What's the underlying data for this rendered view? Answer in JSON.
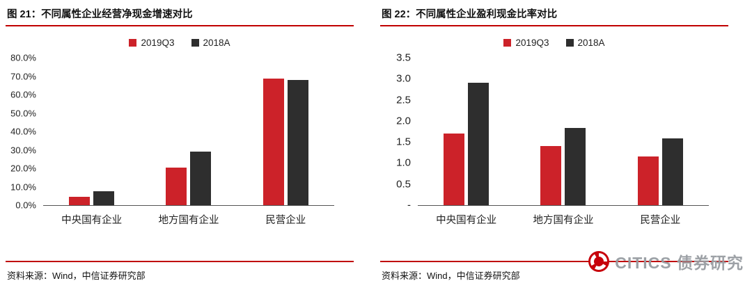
{
  "colors": {
    "series_red": "#cc2229",
    "series_dark": "#2e2e2e",
    "rule_red": "#c00000",
    "watermark_gray": "#989da2",
    "logo_red": "#c7000b"
  },
  "watermark": {
    "text": "CITICS 债券研究"
  },
  "chart_data": [
    {
      "type": "bar",
      "title": "图 21：不同属性企业经营净现金增速对比",
      "categories": [
        "中央国有企业",
        "地方国有企业",
        "民营企业"
      ],
      "series": [
        {
          "name": "2019Q3",
          "color": "#cc2229",
          "values": [
            4.5,
            20.5,
            68.5
          ]
        },
        {
          "name": "2018A",
          "color": "#2e2e2e",
          "values": [
            7.5,
            29.0,
            68.0
          ]
        }
      ],
      "ylim": [
        0,
        80
      ],
      "ytick_step": 10,
      "ytick_labels": [
        "0.0%",
        "10.0%",
        "20.0%",
        "30.0%",
        "40.0%",
        "50.0%",
        "60.0%",
        "70.0%",
        "80.0%"
      ],
      "xlabel": "",
      "ylabel": "",
      "grid": false,
      "legend_position": "top-center",
      "source": "资料来源：Wind，中信证券研究部"
    },
    {
      "type": "bar",
      "title": "图 22：不同属性企业盈利现金比率对比",
      "categories": [
        "中央国有企业",
        "地方国有企业",
        "民营企业"
      ],
      "series": [
        {
          "name": "2019Q3",
          "color": "#cc2229",
          "values": [
            1.7,
            1.4,
            1.15
          ]
        },
        {
          "name": "2018A",
          "color": "#2e2e2e",
          "values": [
            2.9,
            1.83,
            1.58
          ]
        }
      ],
      "ylim": [
        0,
        3.5
      ],
      "ytick_step": 0.5,
      "ytick_labels": [
        "-",
        "0.5",
        "1.0",
        "1.5",
        "2.0",
        "2.5",
        "3.0",
        "3.5"
      ],
      "xlabel": "",
      "ylabel": "",
      "grid": false,
      "legend_position": "top-center",
      "source": "资料来源：Wind，中信证券研究部"
    }
  ]
}
